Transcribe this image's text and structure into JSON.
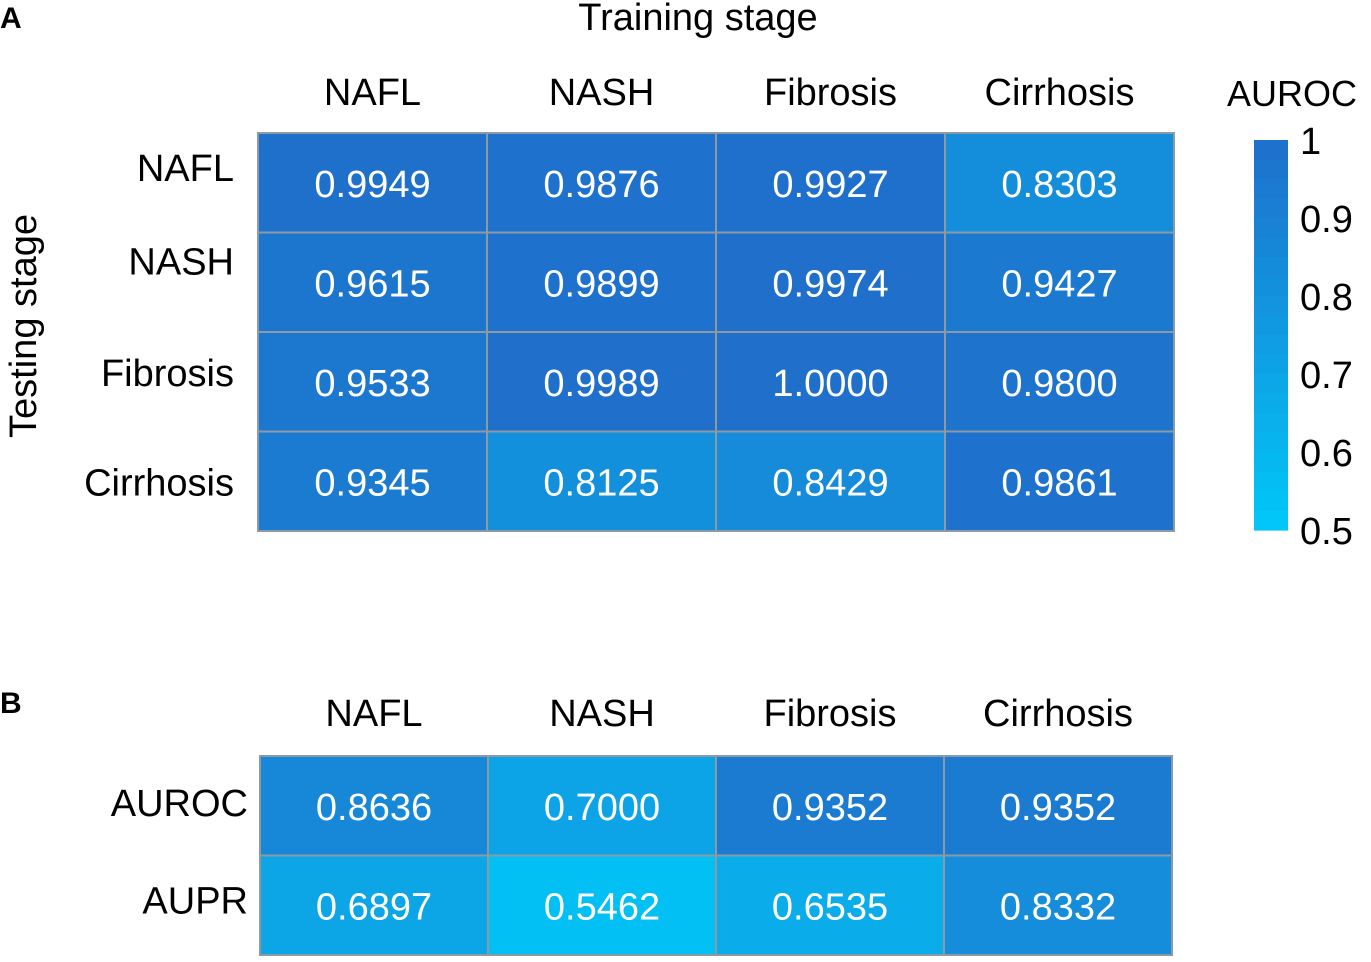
{
  "chart_data": [
    {
      "panel": "A",
      "type": "heatmap",
      "title": "Training stage",
      "xlabel": "Training stage",
      "ylabel": "Testing stage",
      "columns": [
        "NAFL",
        "NASH",
        "Fibrosis",
        "Cirrhosis"
      ],
      "rows": [
        "NAFL",
        "NASH",
        "Fibrosis",
        "Cirrhosis"
      ],
      "values": [
        [
          0.9949,
          0.9876,
          0.9927,
          0.8303
        ],
        [
          0.9615,
          0.9899,
          0.9974,
          0.9427
        ],
        [
          0.9533,
          0.9989,
          1.0,
          0.98
        ],
        [
          0.9345,
          0.8125,
          0.8429,
          0.9861
        ]
      ],
      "labels": [
        [
          "0.9949",
          "0.9876",
          "0.9927",
          "0.8303"
        ],
        [
          "0.9615",
          "0.9899",
          "0.9974",
          "0.9427"
        ],
        [
          "0.9533",
          "0.9989",
          "1.0000",
          "0.9800"
        ],
        [
          "0.9345",
          "0.8125",
          "0.8429",
          "0.9861"
        ]
      ],
      "colorbar": {
        "title": "AUROC",
        "range": [
          0.5,
          1
        ],
        "ticks": [
          "1",
          "0.9",
          "0.8",
          "0.7",
          "0.6",
          "0.5"
        ],
        "tick_values": [
          1,
          0.9,
          0.8,
          0.7,
          0.6,
          0.5
        ],
        "color_low": "#00c8f8",
        "color_high": "#1f6fcb"
      }
    },
    {
      "panel": "B",
      "type": "heatmap",
      "columns": [
        "NAFL",
        "NASH",
        "Fibrosis",
        "Cirrhosis"
      ],
      "rows": [
        "AUROC",
        "AUPR"
      ],
      "values": [
        [
          0.8636,
          0.7,
          0.9352,
          0.9352
        ],
        [
          0.6897,
          0.5462,
          0.6535,
          0.8332
        ]
      ],
      "labels": [
        [
          "0.8636",
          "0.7000",
          "0.9352",
          "0.9352"
        ],
        [
          "0.6897",
          "0.5462",
          "0.6535",
          "0.8332"
        ]
      ]
    }
  ],
  "colors": {
    "low": "#00c8f8",
    "high": "#1f6fcb",
    "grid_line": "#8c9aa6",
    "value_text": "#ffffff"
  }
}
